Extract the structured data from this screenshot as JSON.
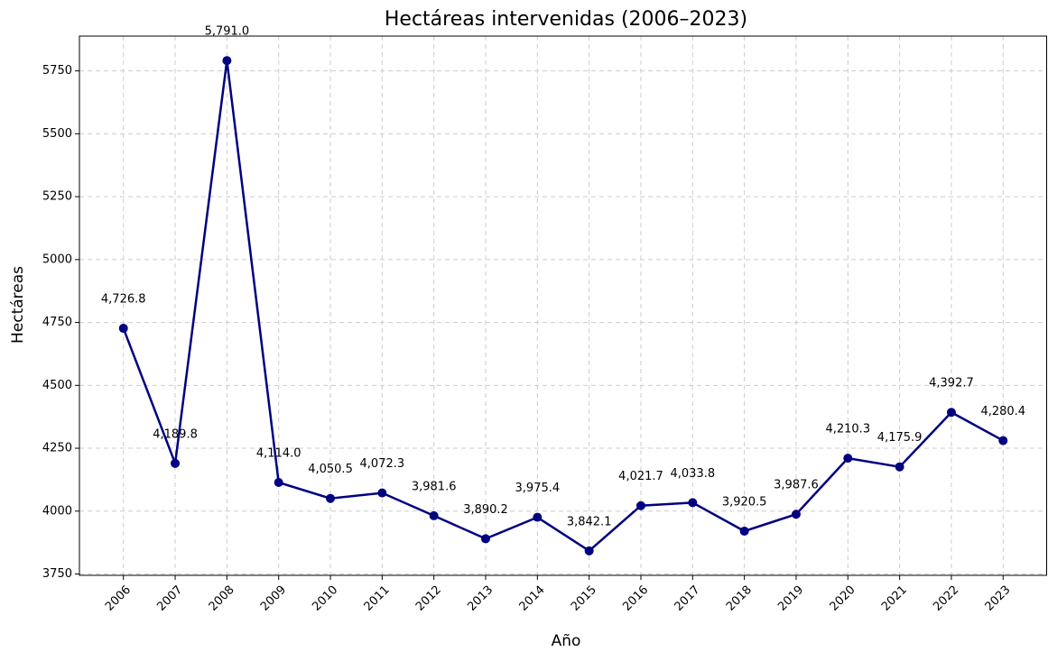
{
  "chart_data": {
    "type": "line",
    "title": "Hectáreas intervenidas (2006–2023)",
    "x_label": "Año",
    "y_label": "Hectáreas",
    "x": [
      2006,
      2007,
      2008,
      2009,
      2010,
      2011,
      2012,
      2013,
      2014,
      2015,
      2016,
      2017,
      2018,
      2019,
      2020,
      2021,
      2022,
      2023
    ],
    "values": [
      4726.8,
      4189.8,
      5791.0,
      4114.0,
      4050.5,
      4072.3,
      3981.6,
      3890.2,
      3975.4,
      3842.1,
      4021.7,
      4033.8,
      3920.5,
      3987.6,
      4210.3,
      4175.9,
      4392.7,
      4280.4
    ],
    "value_labels": [
      "4,726.8",
      "4,189.8",
      "5,791.0",
      "4,114.0",
      "4,050.5",
      "4,072.3",
      "3,981.6",
      "3,890.2",
      "3,975.4",
      "3,842.1",
      "4,021.7",
      "4,033.8",
      "3,920.5",
      "3,987.6",
      "4,210.3",
      "4,175.9",
      "4,392.7",
      "4,280.4"
    ],
    "color": "#000080",
    "xlim": [
      2005.15,
      2023.85
    ],
    "xticks": [
      2006,
      2007,
      2008,
      2009,
      2010,
      2011,
      2012,
      2013,
      2014,
      2015,
      2016,
      2017,
      2018,
      2019,
      2020,
      2021,
      2022,
      2023
    ],
    "ylim": [
      3744.7,
      5888.5
    ],
    "yticks": [
      3750,
      4000,
      4250,
      4500,
      4750,
      5000,
      5250,
      5500,
      5750
    ],
    "grid": true
  }
}
